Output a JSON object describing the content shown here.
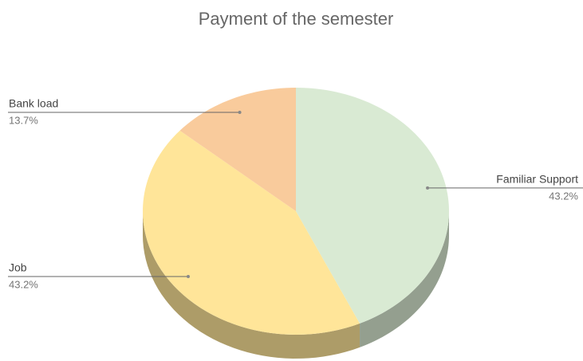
{
  "chart_data": {
    "type": "pie3d",
    "title": "Payment of the semester",
    "categories": [
      "Familiar Support",
      "Job",
      "Bank load"
    ],
    "values": [
      43.2,
      43.2,
      13.7
    ],
    "value_labels": [
      "43.2%",
      "43.2%",
      "13.7%"
    ],
    "colors": [
      "#d9ead3",
      "#ffe599",
      "#f9cb9c"
    ]
  }
}
